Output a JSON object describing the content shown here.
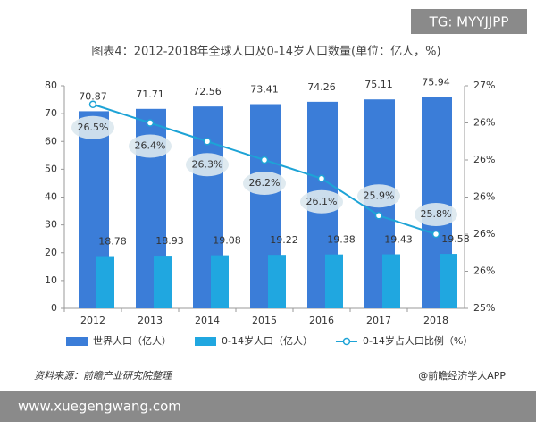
{
  "chart_data": {
    "type": "bar-line",
    "title": "图表4：2012-2018年全球人口及0-14岁人口数量(单位：亿人，%)",
    "categories": [
      "2012",
      "2013",
      "2014",
      "2015",
      "2016",
      "2017",
      "2018"
    ],
    "series": [
      {
        "name": "世界人口（亿人）",
        "type": "bar",
        "color": "#3b7dd8",
        "values": [
          70.87,
          71.71,
          72.56,
          73.41,
          74.26,
          75.11,
          75.94
        ]
      },
      {
        "name": "0-14岁人口（亿人）",
        "type": "bar",
        "color": "#20a7e0",
        "values": [
          18.78,
          18.93,
          19.08,
          19.22,
          19.38,
          19.43,
          19.58
        ]
      },
      {
        "name": "0-14岁占人口比例（%）",
        "type": "line",
        "axis": "y2",
        "color": "#1da3d6",
        "values": [
          26.5,
          26.4,
          26.3,
          26.2,
          26.1,
          25.9,
          25.8
        ],
        "value_labels": [
          "26.5%",
          "26.4%",
          "26.3%",
          "26.2%",
          "26.1%",
          "25.9%",
          "25.8%"
        ]
      }
    ],
    "ylim": [
      0,
      80
    ],
    "yticks": [
      0,
      10,
      20,
      30,
      40,
      50,
      60,
      70,
      80
    ],
    "y2lim": [
      25.4,
      26.6
    ],
    "y2ticks": [
      {
        "value": 25.4,
        "label": "25%"
      },
      {
        "value": 25.6,
        "label": "26%"
      },
      {
        "value": 25.8,
        "label": "26%"
      },
      {
        "value": 26.0,
        "label": "26%"
      },
      {
        "value": 26.2,
        "label": "26%"
      },
      {
        "value": 26.4,
        "label": "26%"
      },
      {
        "value": 26.6,
        "label": "27%"
      }
    ],
    "grid": false,
    "legend": "bottom",
    "source": "资料来源：前瞻产业研究院整理",
    "credit": "@前瞻经济学人APP"
  },
  "watermarks": {
    "top": "TG: MYYJJPP",
    "bottom": "www.xuegengwang.com"
  }
}
